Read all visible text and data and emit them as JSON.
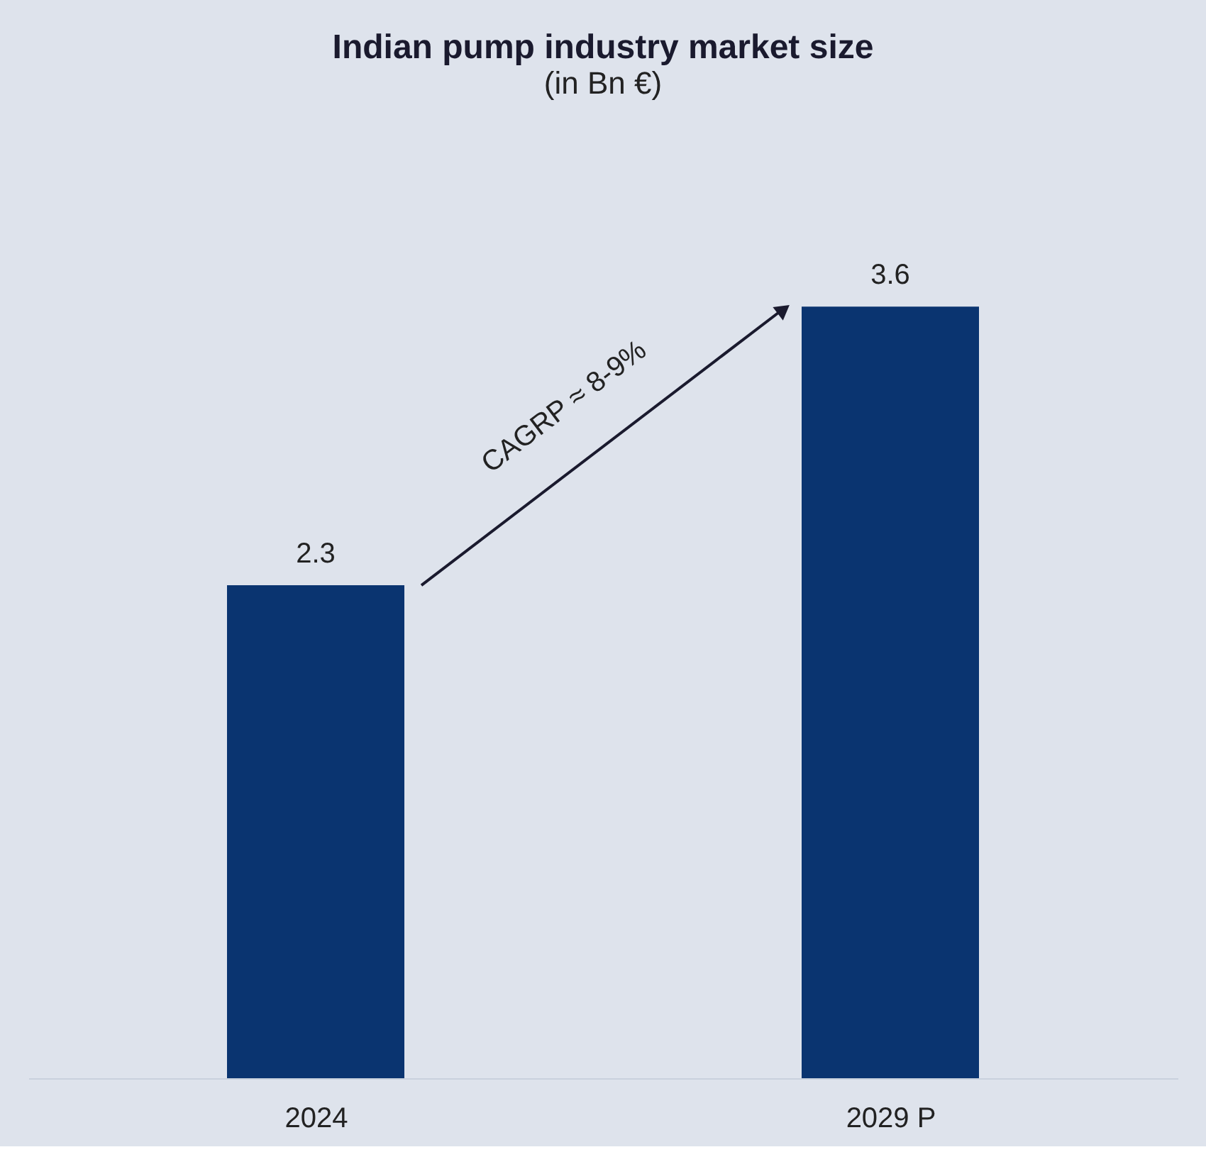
{
  "chart_data": {
    "type": "bar",
    "title": "Indian pump industry market size",
    "subtitle": "(in Bn €)",
    "categories": [
      "2024",
      "2029 P"
    ],
    "values": [
      2.3,
      3.6
    ],
    "color": "#0a3470",
    "data_labels": true,
    "annotations": [
      "CAGRP ≈ 8-9%"
    ]
  }
}
